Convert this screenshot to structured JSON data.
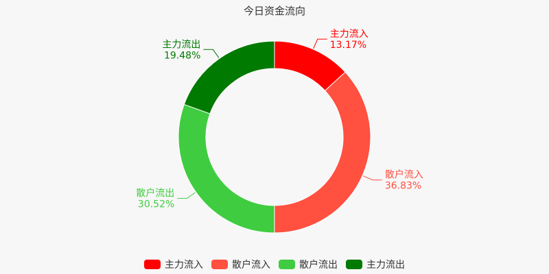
{
  "chart_data": {
    "type": "pie",
    "title": "今日资金流向",
    "series": [
      {
        "name": "主力流入",
        "percent": 13.17,
        "label": "13.17%",
        "color": "#ff0000"
      },
      {
        "name": "散户流入",
        "percent": 36.83,
        "label": "36.83%",
        "color": "#ff5040"
      },
      {
        "name": "散户流出",
        "percent": 30.52,
        "label": "30.52%",
        "color": "#40cc40"
      },
      {
        "name": "主力流出",
        "percent": 19.48,
        "label": "19.48%",
        "color": "#007a00"
      }
    ],
    "legend_position": "bottom"
  }
}
